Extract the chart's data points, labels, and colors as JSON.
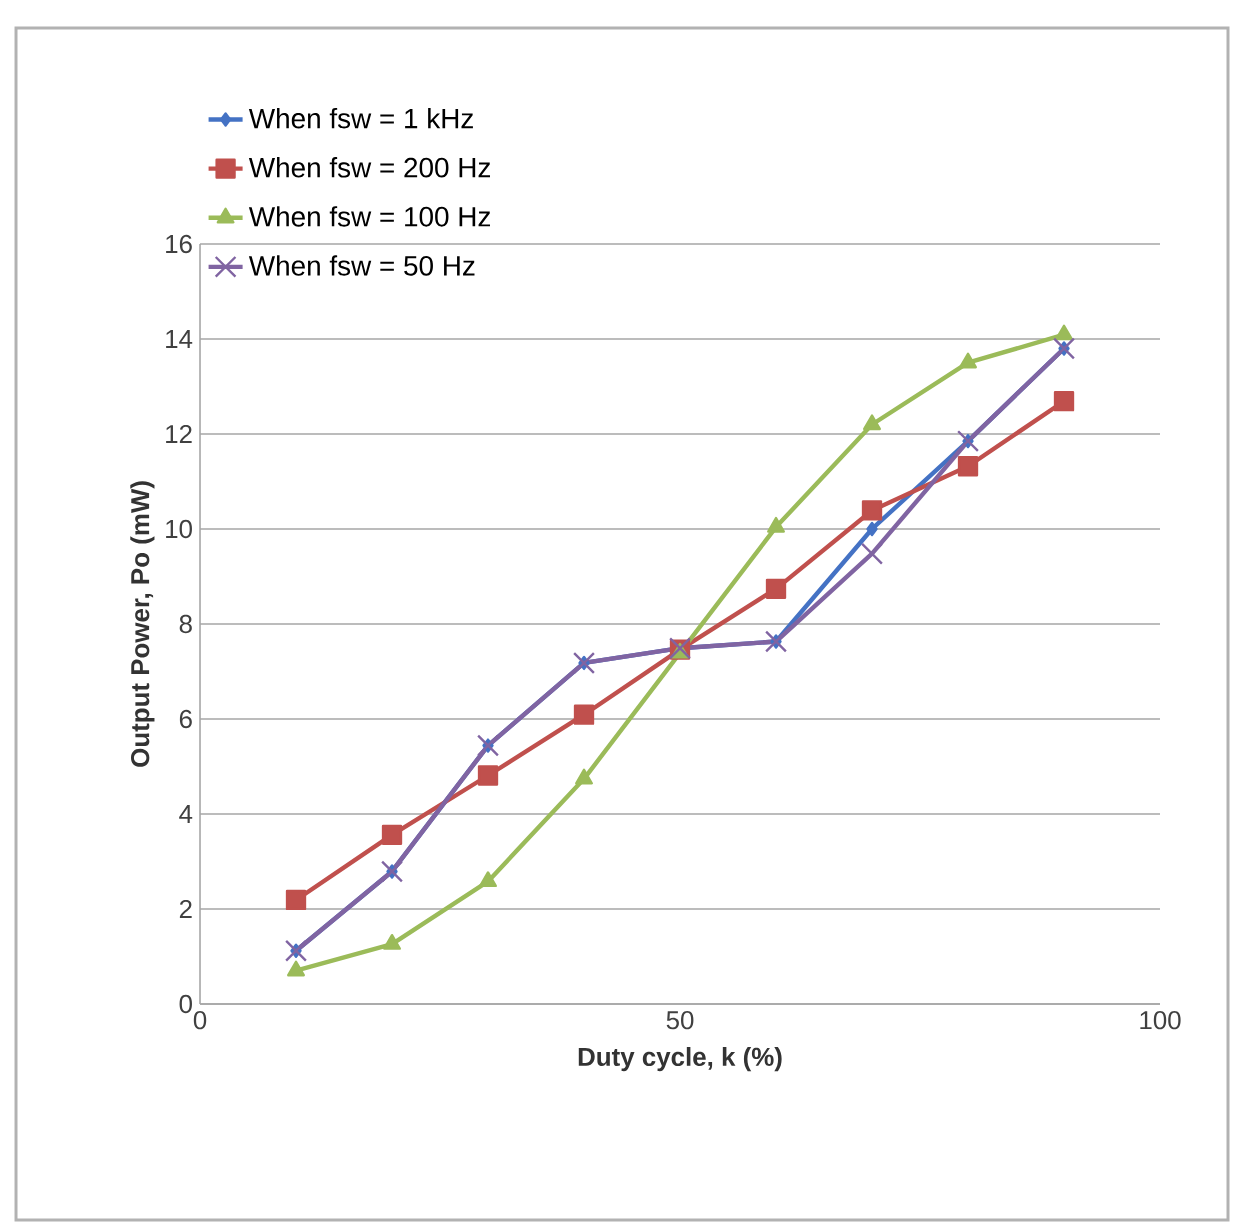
{
  "chart_data": {
    "type": "line",
    "xlabel": "Duty cycle, k (%)",
    "ylabel": "Output Power, Po (mW)",
    "x": [
      10,
      20,
      30,
      40,
      50,
      60,
      70,
      80,
      90
    ],
    "xlim": [
      0,
      100
    ],
    "xticks": [
      0,
      50,
      100
    ],
    "ylim": [
      0,
      16
    ],
    "yticks": [
      0,
      2,
      4,
      6,
      8,
      10,
      12,
      14,
      16
    ],
    "grid": "y",
    "legend": "top left",
    "series": [
      {
        "name": "When fsw = 1 kHz",
        "color": "#4472c4",
        "marker": "diamond",
        "values": [
          1.12,
          2.79,
          5.44,
          7.18,
          7.49,
          7.63,
          10.0,
          11.85,
          13.8
        ]
      },
      {
        "name": "When fsw = 200 Hz",
        "color": "#c0504d",
        "marker": "square",
        "values": [
          2.19,
          3.56,
          4.81,
          6.09,
          7.46,
          8.74,
          10.39,
          11.32,
          12.69
        ]
      },
      {
        "name": "When fsw = 100 Hz",
        "color": "#9bbb59",
        "marker": "triangle",
        "values": [
          0.7,
          1.26,
          2.58,
          4.74,
          7.39,
          10.04,
          12.2,
          13.5,
          14.09
        ]
      },
      {
        "name": "When fsw = 50 Hz",
        "color": "#8064a2",
        "marker": "cross",
        "values": [
          1.12,
          2.79,
          5.44,
          7.18,
          7.49,
          7.63,
          9.48,
          11.85,
          13.8
        ]
      }
    ]
  }
}
